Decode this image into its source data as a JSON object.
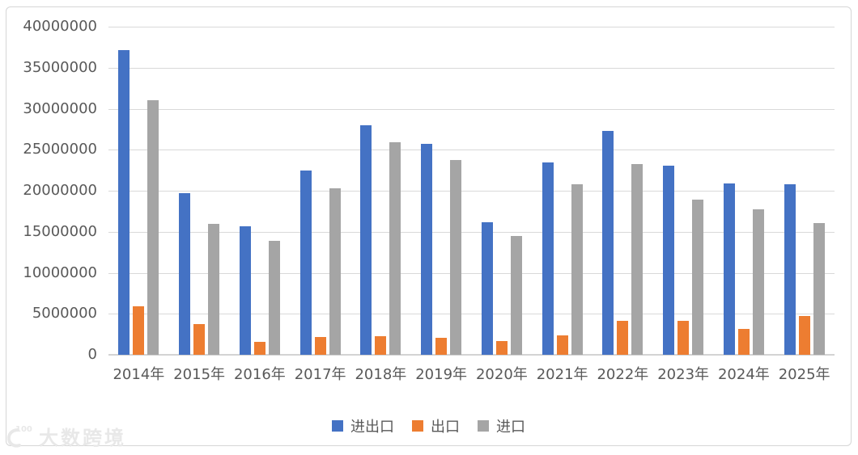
{
  "chart_data": {
    "type": "bar",
    "title": "",
    "categories": [
      "2014年",
      "2015年",
      "2016年",
      "2017年",
      "2018年",
      "2019年",
      "2020年",
      "2021年",
      "2022年",
      "2023年",
      "2024年",
      "2025年"
    ],
    "series": [
      {
        "key": "import-export",
        "name": "进出口",
        "color": "#4472C4",
        "values": [
          37100000,
          19700000,
          15700000,
          22500000,
          28000000,
          25700000,
          16200000,
          23400000,
          27300000,
          23100000,
          20900000,
          20800000
        ]
      },
      {
        "key": "export",
        "name": "出口",
        "color": "#ED7D31",
        "values": [
          5900000,
          3700000,
          1600000,
          2200000,
          2300000,
          2100000,
          1700000,
          2400000,
          4100000,
          4100000,
          3200000,
          4700000
        ]
      },
      {
        "key": "import",
        "name": "进口",
        "color": "#A5A5A5",
        "values": [
          31000000,
          16000000,
          13900000,
          20300000,
          25900000,
          23700000,
          14500000,
          20800000,
          23300000,
          18900000,
          17700000,
          16100000
        ]
      }
    ],
    "xlabel": "",
    "ylabel": "",
    "ylim": [
      0,
      40000000
    ],
    "ytick_labels": [
      "0",
      "5000000",
      "10000000",
      "15000000",
      "20000000",
      "25000000",
      "30000000",
      "35000000",
      "40000000"
    ],
    "grid": true,
    "legend_position": "bottom"
  },
  "colors": {
    "text": "#595959",
    "gridline": "#d9d9d9",
    "axis_line": "#d3d3d3",
    "frame_border": "#d6d6d6",
    "watermark": "#e8e8e8"
  },
  "watermark": {
    "logo": "100-swoosh-logo",
    "text": "大数跨境"
  }
}
